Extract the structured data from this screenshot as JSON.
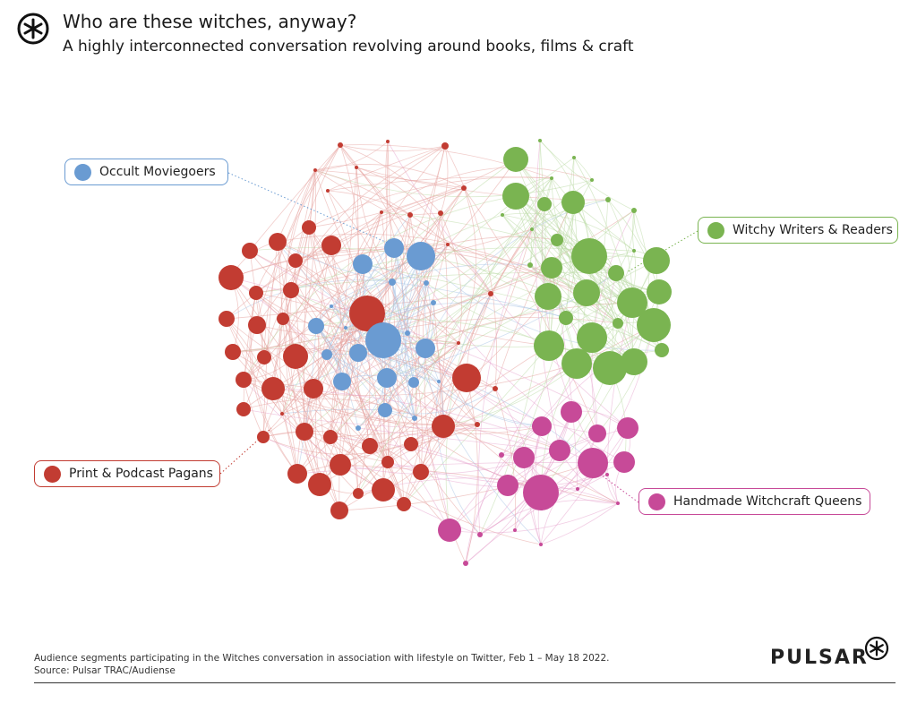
{
  "header": {
    "title": "Who are these witches, anyway?",
    "subtitle": "A highly interconnected conversation revolving around books, films & craft"
  },
  "colors": {
    "occult": "#6a9bd2",
    "witchy": "#7ab451",
    "pagans": "#c23c32",
    "handmade": "#c74a98",
    "occult_edge": "#a9c4e6",
    "witchy_edge": "#bcdaa5",
    "pagans_edge": "#e6a39e",
    "handmade_edge": "#e7a7cf"
  },
  "segments": {
    "occult": {
      "label": "Occult Moviegoers",
      "icon": "blue-dot-icon"
    },
    "witchy": {
      "label": "Witchy Writers & Readers",
      "icon": "green-dot-icon"
    },
    "pagans": {
      "label": "Print & Podcast Pagans",
      "icon": "red-dot-icon"
    },
    "handmade": {
      "label": "Handmade Witchcraft Queens",
      "icon": "pink-dot-icon"
    }
  },
  "footer": {
    "note_line1": "Audience segments participating in the Witches conversation in association with lifestyle on Twitter, Feb 1  – May 18 2022.",
    "note_line2": "Source: Pulsar TRAC/Audiense",
    "brand": "PULSAR"
  }
}
